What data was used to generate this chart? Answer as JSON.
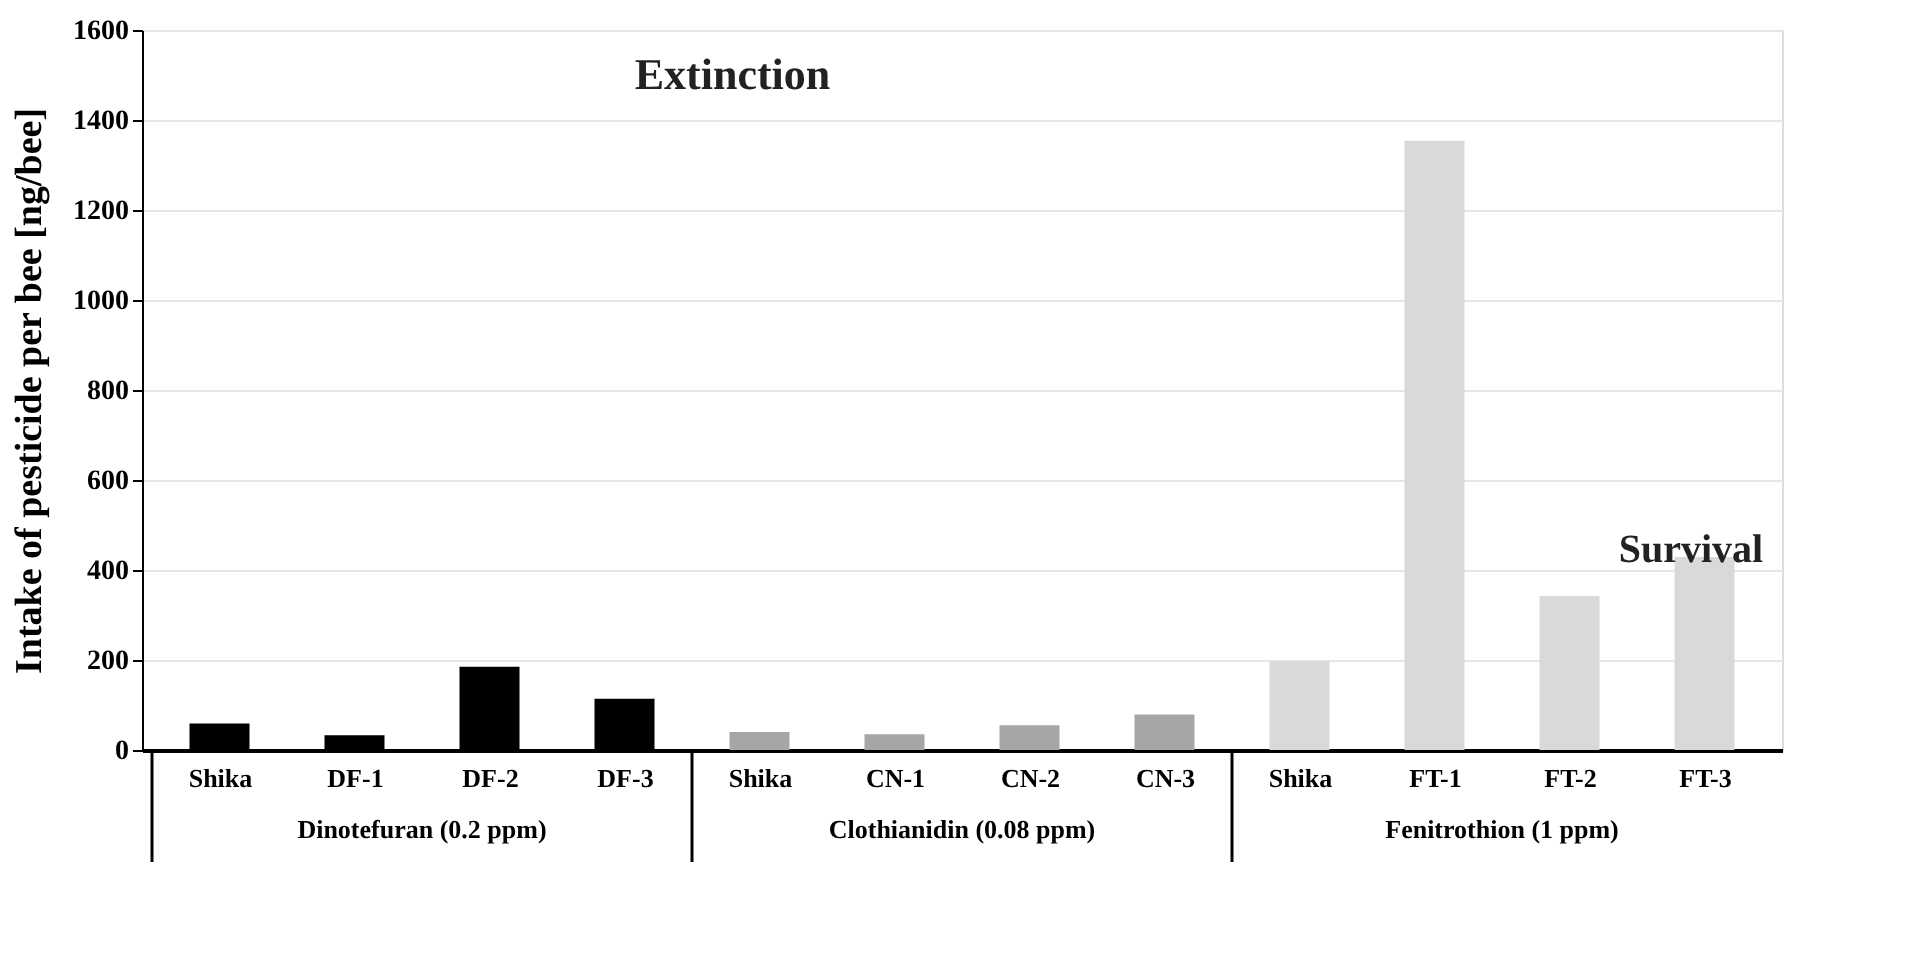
{
  "chart_data": {
    "type": "bar",
    "ylabel": "Intake of pesticide per bee [ng/bee]",
    "categories": [
      "Shika",
      "DF-1",
      "DF-2",
      "DF-3",
      "Shika",
      "CN-1",
      "CN-2",
      "CN-3",
      "Shika",
      "FT-1",
      "FT-2",
      "FT-3"
    ],
    "values": [
      59,
      33,
      185,
      114,
      40,
      35,
      55,
      79,
      197,
      1354,
      342,
      429
    ],
    "colors": [
      "#000000",
      "#000000",
      "#000000",
      "#000000",
      "#a6a6a6",
      "#a6a6a6",
      "#a6a6a6",
      "#a6a6a6",
      "#d9d9d9",
      "#d9d9d9",
      "#d9d9d9",
      "#d9d9d9"
    ],
    "ylim": [
      0,
      1600
    ],
    "yticks": [
      0,
      200,
      400,
      600,
      800,
      1000,
      1200,
      1400,
      1600
    ],
    "grid": "y",
    "annotations": [
      "Dinotefuran (0.2 ppm)",
      "Clothianidin (0.08 ppm)",
      "Fenitrothion (1 ppm)",
      "Extinction",
      "Survival"
    ]
  }
}
